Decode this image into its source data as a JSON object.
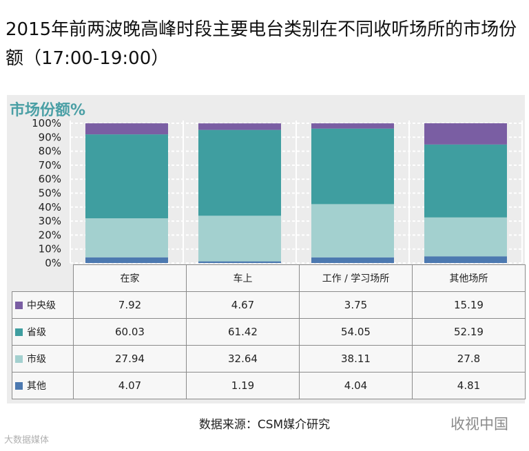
{
  "title": "2015年前两波晚高峰时段主要电台类别在不同收听场所的市场份额（17:00-19:00）",
  "chart_data": {
    "type": "stacked-bar",
    "title": "市场份额%",
    "categories": [
      "在家",
      "车上",
      "工作 / 学习场所",
      "其他场所"
    ],
    "series": [
      {
        "name": "中央级",
        "color": "#7a5ea3",
        "values": [
          7.92,
          4.67,
          3.75,
          15.19
        ],
        "labels": [
          "7.92",
          "4.67",
          "3.75",
          "15.19"
        ]
      },
      {
        "name": "省级",
        "color": "#3f9ea0",
        "values": [
          60.03,
          61.42,
          54.05,
          52.19
        ],
        "labels": [
          "60.03",
          "61.42",
          "54.05",
          "52.19"
        ]
      },
      {
        "name": "市级",
        "color": "#a3d0cf",
        "values": [
          27.94,
          32.64,
          38.11,
          27.8
        ],
        "labels": [
          "27.94",
          "32.64",
          "38.11",
          "27.8"
        ]
      },
      {
        "name": "其他",
        "color": "#4c79b0",
        "values": [
          4.07,
          1.19,
          4.04,
          4.81
        ],
        "labels": [
          "4.07",
          "1.19",
          "4.04",
          "4.81"
        ]
      }
    ],
    "stack_order_bottom_to_top": [
      "其他",
      "市级",
      "省级",
      "中央级"
    ],
    "y_ticks": [
      "0%",
      "10%",
      "20%",
      "30%",
      "40%",
      "50%",
      "60%",
      "70%",
      "80%",
      "90%",
      "100%"
    ],
    "ylim": [
      0,
      100
    ]
  },
  "source": "数据来源：CSM媒介研究",
  "watermark_right": "收视中国",
  "watermark_left": "大数据媒体"
}
